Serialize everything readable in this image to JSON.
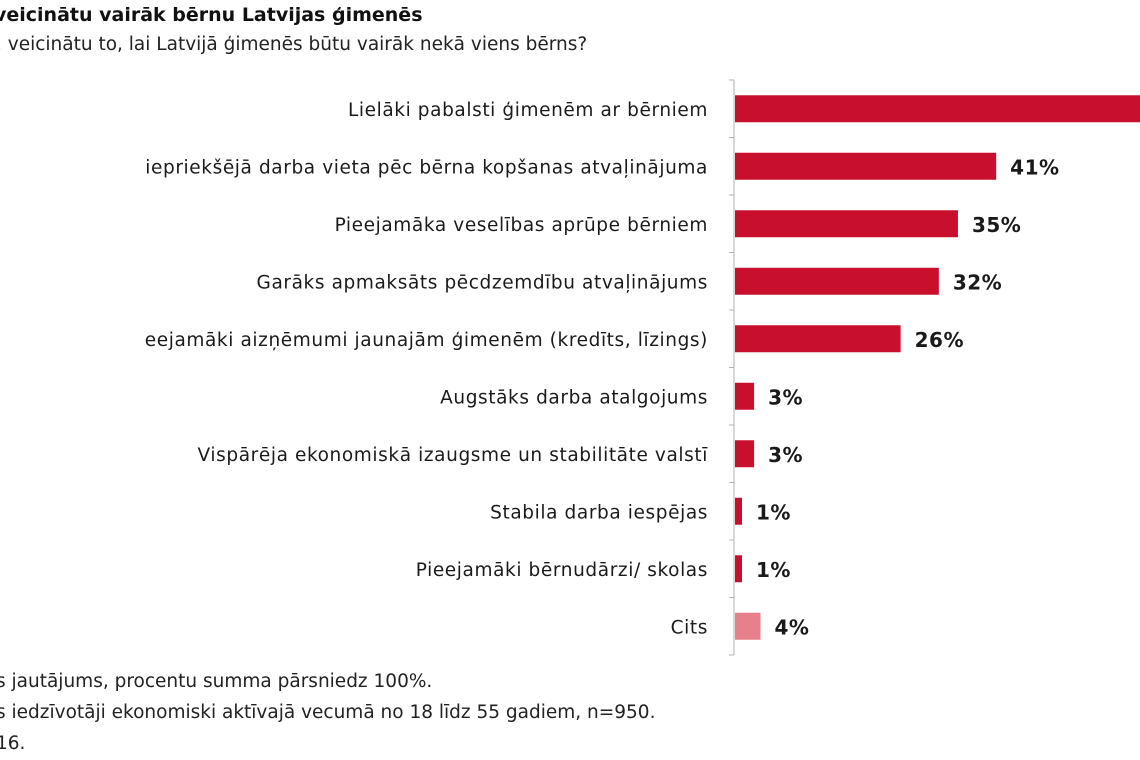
{
  "chart_data": {
    "type": "bar",
    "orientation": "horizontal",
    "title": "veicinātu vairāk bērnu Latvijas ģimenēs",
    "subtitle": ", veicinātu to, lai Latvijā ģimenēs būtu vairāk nekā viens bērns?",
    "categories": [
      "Lielāki pabalsti ģimenēm ar bērniem",
      "iepriekšējā darba vieta pēc bērna kopšanas atvaļinājuma",
      "Pieejamāka veselības aprūpe bērniem",
      "Garāks apmaksāts pēcdzemdību atvaļinājums",
      "eejamāki aizņēmumi jaunajām ģimenēm (kredīts, līzings)",
      "Augstāks darba atalgojums",
      "Vispārēja ekonomiskā izaugsme un stabilitāte valstī",
      "Stabila darba iespējas",
      "Pieejamāki bērnudārzi/ skolas",
      "Cits"
    ],
    "values": [
      null,
      41,
      35,
      32,
      26,
      3,
      3,
      1,
      1,
      4
    ],
    "value_labels": [
      "",
      "41%",
      "35%",
      "32%",
      "26%",
      "3%",
      "3%",
      "1%",
      "1%",
      "4%"
    ],
    "first_bar_note": "bar extends beyond right edge; value cut off",
    "xlim": [
      0,
      100
    ],
    "colors": {
      "main": "#c8102e",
      "other": "#e8808c",
      "axis": "#b0b0b0"
    },
    "grid": false,
    "legend": "none"
  },
  "notes": [
    "s jautājums, procentu summa pārsniedz 100%.",
    "s iedzīvotāji ekonomiski aktīvajā vecumā no 18 līdz 55 gadiem, n=950.",
    "16."
  ]
}
